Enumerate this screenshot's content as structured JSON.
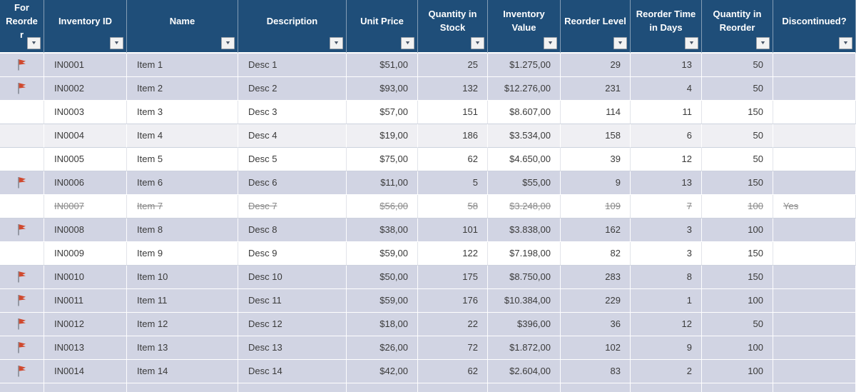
{
  "table": {
    "columns": [
      {
        "label": "For Reorder"
      },
      {
        "label": "Inventory ID"
      },
      {
        "label": "Name"
      },
      {
        "label": "Description"
      },
      {
        "label": "Unit Price"
      },
      {
        "label": "Quantity in Stock"
      },
      {
        "label": "Inventory Value"
      },
      {
        "label": "Reorder Level"
      },
      {
        "label": "Reorder Time in Days"
      },
      {
        "label": "Quantity in Reorder"
      },
      {
        "label": "Discontinued?"
      }
    ],
    "rows": [
      {
        "flagged": true,
        "struck": false,
        "id": "IN0001",
        "name": "Item 1",
        "description": "Desc 1",
        "unit_price": "$51,00",
        "quantity_in_stock": "25",
        "inventory_value": "$1.275,00",
        "reorder_level": "29",
        "reorder_time_in_days": "13",
        "quantity_in_reorder": "50",
        "discontinued": ""
      },
      {
        "flagged": true,
        "struck": false,
        "id": "IN0002",
        "name": "Item 2",
        "description": "Desc 2",
        "unit_price": "$93,00",
        "quantity_in_stock": "132",
        "inventory_value": "$12.276,00",
        "reorder_level": "231",
        "reorder_time_in_days": "4",
        "quantity_in_reorder": "50",
        "discontinued": ""
      },
      {
        "flagged": false,
        "struck": false,
        "id": "IN0003",
        "name": "Item 3",
        "description": "Desc 3",
        "unit_price": "$57,00",
        "quantity_in_stock": "151",
        "inventory_value": "$8.607,00",
        "reorder_level": "114",
        "reorder_time_in_days": "11",
        "quantity_in_reorder": "150",
        "discontinued": ""
      },
      {
        "flagged": false,
        "struck": false,
        "id": "IN0004",
        "name": "Item 4",
        "description": "Desc 4",
        "unit_price": "$19,00",
        "quantity_in_stock": "186",
        "inventory_value": "$3.534,00",
        "reorder_level": "158",
        "reorder_time_in_days": "6",
        "quantity_in_reorder": "50",
        "discontinued": ""
      },
      {
        "flagged": false,
        "struck": false,
        "id": "IN0005",
        "name": "Item 5",
        "description": "Desc 5",
        "unit_price": "$75,00",
        "quantity_in_stock": "62",
        "inventory_value": "$4.650,00",
        "reorder_level": "39",
        "reorder_time_in_days": "12",
        "quantity_in_reorder": "50",
        "discontinued": ""
      },
      {
        "flagged": true,
        "struck": false,
        "id": "IN0006",
        "name": "Item 6",
        "description": "Desc 6",
        "unit_price": "$11,00",
        "quantity_in_stock": "5",
        "inventory_value": "$55,00",
        "reorder_level": "9",
        "reorder_time_in_days": "13",
        "quantity_in_reorder": "150",
        "discontinued": ""
      },
      {
        "flagged": false,
        "struck": true,
        "id": "IN0007",
        "name": "Item 7",
        "description": "Desc 7",
        "unit_price": "$56,00",
        "quantity_in_stock": "58",
        "inventory_value": "$3.248,00",
        "reorder_level": "109",
        "reorder_time_in_days": "7",
        "quantity_in_reorder": "100",
        "discontinued": "Yes"
      },
      {
        "flagged": true,
        "struck": false,
        "id": "IN0008",
        "name": "Item 8",
        "description": "Desc 8",
        "unit_price": "$38,00",
        "quantity_in_stock": "101",
        "inventory_value": "$3.838,00",
        "reorder_level": "162",
        "reorder_time_in_days": "3",
        "quantity_in_reorder": "100",
        "discontinued": ""
      },
      {
        "flagged": false,
        "struck": false,
        "id": "IN0009",
        "name": "Item 9",
        "description": "Desc 9",
        "unit_price": "$59,00",
        "quantity_in_stock": "122",
        "inventory_value": "$7.198,00",
        "reorder_level": "82",
        "reorder_time_in_days": "3",
        "quantity_in_reorder": "150",
        "discontinued": ""
      },
      {
        "flagged": true,
        "struck": false,
        "id": "IN0010",
        "name": "Item 10",
        "description": "Desc 10",
        "unit_price": "$50,00",
        "quantity_in_stock": "175",
        "inventory_value": "$8.750,00",
        "reorder_level": "283",
        "reorder_time_in_days": "8",
        "quantity_in_reorder": "150",
        "discontinued": ""
      },
      {
        "flagged": true,
        "struck": false,
        "id": "IN0011",
        "name": "Item 11",
        "description": "Desc 11",
        "unit_price": "$59,00",
        "quantity_in_stock": "176",
        "inventory_value": "$10.384,00",
        "reorder_level": "229",
        "reorder_time_in_days": "1",
        "quantity_in_reorder": "100",
        "discontinued": ""
      },
      {
        "flagged": true,
        "struck": false,
        "id": "IN0012",
        "name": "Item 12",
        "description": "Desc 12",
        "unit_price": "$18,00",
        "quantity_in_stock": "22",
        "inventory_value": "$396,00",
        "reorder_level": "36",
        "reorder_time_in_days": "12",
        "quantity_in_reorder": "50",
        "discontinued": ""
      },
      {
        "flagged": true,
        "struck": false,
        "id": "IN0013",
        "name": "Item 13",
        "description": "Desc 13",
        "unit_price": "$26,00",
        "quantity_in_stock": "72",
        "inventory_value": "$1.872,00",
        "reorder_level": "102",
        "reorder_time_in_days": "9",
        "quantity_in_reorder": "100",
        "discontinued": ""
      },
      {
        "flagged": true,
        "struck": false,
        "id": "IN0014",
        "name": "Item 14",
        "description": "Desc 14",
        "unit_price": "$42,00",
        "quantity_in_stock": "62",
        "inventory_value": "$2.604,00",
        "reorder_level": "83",
        "reorder_time_in_days": "2",
        "quantity_in_reorder": "100",
        "discontinued": ""
      }
    ]
  },
  "icons": {
    "filter_arrow": "▼",
    "flag": "⚑"
  },
  "colors": {
    "header_bg": "#1F4E79",
    "header_text": "#FFFFFF",
    "flagged_row_bg": "#D1D4E3",
    "banded_row_bg": "#EFEFF3",
    "plain_row_bg": "#FFFFFF",
    "body_text": "#3A3A3A",
    "struck_text": "#8A8A8A",
    "flag_red": "#D0492E",
    "flag_pole": "#8A8F98"
  }
}
